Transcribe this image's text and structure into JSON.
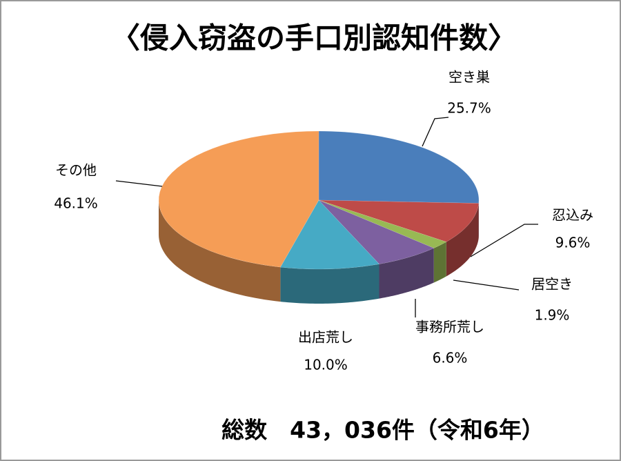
{
  "chart_data": {
    "type": "pie",
    "title": "〈侵入窃盗の手口別認知件数〉",
    "categories": [
      "空き巣",
      "忍込み",
      "居空き",
      "事務所荒し",
      "出店荒し",
      "その他"
    ],
    "values": [
      25.7,
      9.6,
      1.9,
      6.6,
      10.0,
      46.1
    ],
    "value_labels": [
      "25.7%",
      "9.6%",
      "1.9%",
      "6.6%",
      "10.0%",
      "46.1%"
    ],
    "colors": [
      "#4a7ebb",
      "#be4b48",
      "#98b954",
      "#7d60a0",
      "#46aac5",
      "#f59d56"
    ],
    "footnote": "総数　43，036件（令和6年）"
  }
}
